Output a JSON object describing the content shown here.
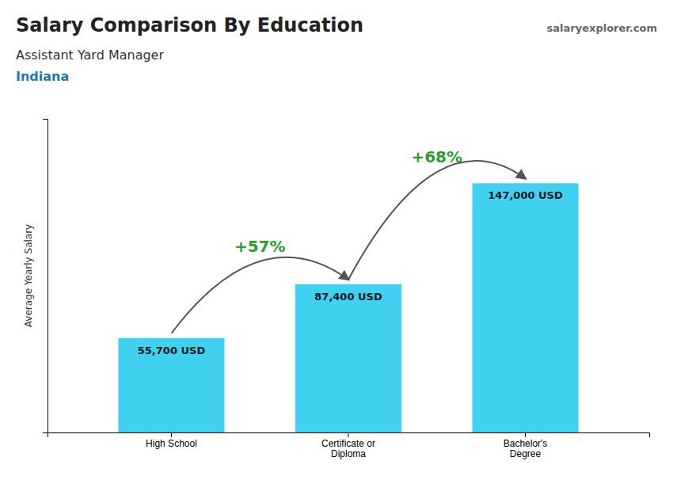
{
  "chart_data": {
    "type": "bar",
    "title": "Salary Comparison By Education",
    "subtitle": "Assistant Yard Manager",
    "location": "Indiana",
    "watermark": "salaryexplorer.com",
    "ylabel": "Average Yearly Salary",
    "categories": [
      "High School",
      "Certificate or\nDiploma",
      "Bachelor's\nDegree"
    ],
    "values": [
      55700,
      87400,
      147000
    ],
    "value_labels": [
      "55,700 USD",
      "87,400 USD",
      "147,000 USD"
    ],
    "data_labels": true,
    "annotations": [
      "+57%",
      "+68%"
    ],
    "color": "#40d0f0",
    "ylim": [
      0,
      185000
    ],
    "tick_labels": "x"
  }
}
